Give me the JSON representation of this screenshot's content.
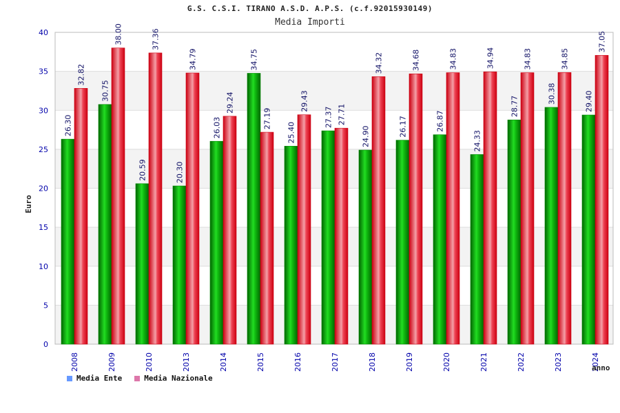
{
  "chart_data": {
    "type": "bar",
    "title": "G.S. C.S.I. TIRANO A.S.D. A.P.S. (c.f.92015930149)",
    "subtitle": "Media Importi",
    "xlabel": "anno",
    "ylabel": "Euro",
    "ylim": [
      0,
      40
    ],
    "yticks": [
      0,
      5,
      10,
      15,
      20,
      25,
      30,
      35,
      40
    ],
    "grid": true,
    "legend_position": "bottom-left",
    "categories": [
      "2008",
      "2009",
      "2010",
      "2013",
      "2014",
      "2015",
      "2016",
      "2017",
      "2018",
      "2019",
      "2020",
      "2021",
      "2022",
      "2023",
      "2024"
    ],
    "series": [
      {
        "name": "Media Ente",
        "color": "#00b400",
        "legend_color": "#6699ff",
        "values": [
          26.3,
          30.75,
          20.59,
          20.3,
          26.03,
          34.75,
          25.4,
          27.37,
          24.9,
          26.17,
          26.87,
          24.33,
          28.77,
          30.38,
          29.4
        ],
        "labels": [
          "26.30",
          "30.75",
          "20.59",
          "20.30",
          "26.03",
          "34.75",
          "25.40",
          "27.37",
          "24.90",
          "26.17",
          "26.87",
          "24.33",
          "28.77",
          "30.38",
          "29.40"
        ]
      },
      {
        "name": "Media Nazionale",
        "color": "#ee2233",
        "legend_color": "#dd77aa",
        "values": [
          32.82,
          38.0,
          37.36,
          34.79,
          29.24,
          27.19,
          29.43,
          27.71,
          34.32,
          34.68,
          34.83,
          34.94,
          34.83,
          34.85,
          37.05
        ],
        "labels": [
          "32.82",
          "38.00",
          "37.36",
          "34.79",
          "29.24",
          "27.19",
          "29.43",
          "27.71",
          "34.32",
          "34.68",
          "34.83",
          "34.94",
          "34.83",
          "34.85",
          "37.05"
        ]
      }
    ]
  }
}
